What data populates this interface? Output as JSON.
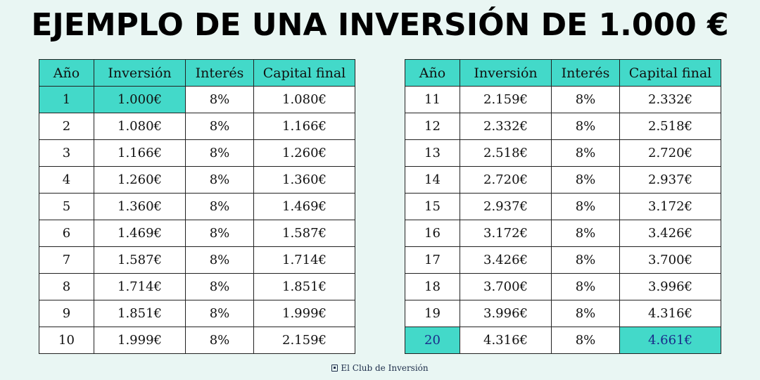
{
  "title": "EJEMPLO DE UNA INVERSIÓN DE 1.000 €",
  "columns": [
    "Año",
    "Inversión",
    "Interés",
    "Capital final"
  ],
  "left_table": [
    [
      "1",
      "1.000€",
      "8%",
      "1.080€"
    ],
    [
      "2",
      "1.080€",
      "8%",
      "1.166€"
    ],
    [
      "3",
      "1.166€",
      "8%",
      "1.260€"
    ],
    [
      "4",
      "1.260€",
      "8%",
      "1.360€"
    ],
    [
      "5",
      "1.360€",
      "8%",
      "1.469€"
    ],
    [
      "6",
      "1.469€",
      "8%",
      "1.587€"
    ],
    [
      "7",
      "1.587€",
      "8%",
      "1.714€"
    ],
    [
      "8",
      "1.714€",
      "8%",
      "1.851€"
    ],
    [
      "9",
      "1.851€",
      "8%",
      "1.999€"
    ],
    [
      "10",
      "1.999€",
      "8%",
      "2.159€"
    ]
  ],
  "right_table": [
    [
      "11",
      "2.159€",
      "8%",
      "2.332€"
    ],
    [
      "12",
      "2.332€",
      "8%",
      "2.518€"
    ],
    [
      "13",
      "2.518€",
      "8%",
      "2.720€"
    ],
    [
      "14",
      "2.720€",
      "8%",
      "2.937€"
    ],
    [
      "15",
      "2.937€",
      "8%",
      "3.172€"
    ],
    [
      "16",
      "3.172€",
      "8%",
      "3.426€"
    ],
    [
      "17",
      "3.426€",
      "8%",
      "3.700€"
    ],
    [
      "18",
      "3.700€",
      "8%",
      "3.996€"
    ],
    [
      "19",
      "3.996€",
      "8%",
      "4.316€"
    ],
    [
      "20",
      "4.316€",
      "8%",
      "4.661€"
    ]
  ],
  "colors": {
    "background": "#e9f6f3",
    "accent": "#43d9c9",
    "highlight_text": "#1a2a8a"
  },
  "brand": {
    "icon": "club-logo-icon",
    "label": "El Club de Inversión"
  }
}
